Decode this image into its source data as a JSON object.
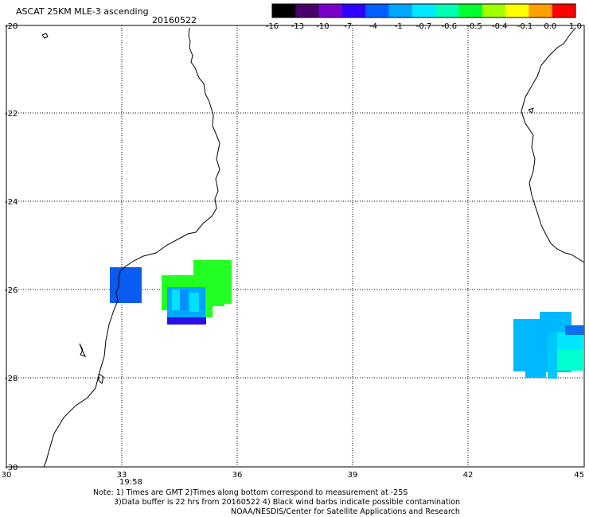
{
  "header": {
    "title": "ASCAT 25KM MLE-3 ascending",
    "date": "20160522"
  },
  "colorbar": {
    "labels": [
      "-16",
      "-13",
      "-10",
      "-7",
      "-4",
      "-1",
      "-0.7",
      "-0.6",
      "-0.5",
      "-0.4",
      "-0.1",
      "0.0",
      "1.0"
    ],
    "colors": [
      "#000000",
      "#4a006a",
      "#7a00c8",
      "#3000ff",
      "#0060ff",
      "#00a8ff",
      "#00e8ff",
      "#00ffb0",
      "#00ff30",
      "#a0ff00",
      "#ffff00",
      "#ffa000",
      "#ff0000"
    ]
  },
  "axes": {
    "y_labels": [
      "-20",
      "-22",
      "-24",
      "-26",
      "-28",
      "-30"
    ],
    "x_labels": [
      "30",
      "33",
      "36",
      "39",
      "42",
      "45"
    ]
  },
  "time_label": "19:58",
  "time_label_color": "#cc2200",
  "notes": {
    "line1": "Note: 1) Times are GMT 2)Times along bottom correspond to measurement at -25S",
    "line2": "3)Data buffer is 22 hrs from 20160522 4) Black wind barbs indicate possible contamination",
    "line3": "NOAA/NESDIS/Center for Satellite Applications and Research"
  }
}
